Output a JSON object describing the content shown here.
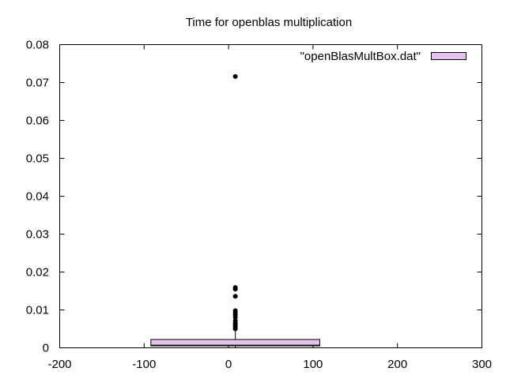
{
  "chart_data": {
    "type": "box",
    "title": "Time for openblas multiplication",
    "xlabel": "",
    "ylabel": "",
    "xlim": [
      -200,
      300
    ],
    "ylim": [
      0,
      0.08
    ],
    "x_ticks": [
      -200,
      -100,
      0,
      100,
      200,
      300
    ],
    "x_tick_labels": [
      "-200",
      "-100",
      "0",
      "100",
      "200",
      "300"
    ],
    "y_ticks": [
      0,
      0.01,
      0.02,
      0.03,
      0.04,
      0.05,
      0.06,
      0.07,
      0.08
    ],
    "y_tick_labels": [
      "0",
      "0.01",
      "0.02",
      "0.03",
      "0.04",
      "0.05",
      "0.06",
      "0.07",
      "0.08"
    ],
    "grid": false,
    "legend": {
      "position": "top-right",
      "entries": [
        "\"openBlasMultBox.dat\""
      ]
    },
    "series": [
      {
        "name": "\"openBlasMultBox.dat\"",
        "color": "#e6c3ee",
        "box": {
          "x": 8,
          "x_left": -92,
          "x_right": 108,
          "min": 0.0001,
          "q1": 0.0005,
          "median": 0.0007,
          "q3": 0.0022,
          "whisker_high": 0.0045
        },
        "outliers": [
          {
            "x": 8,
            "y": 0.0716
          },
          {
            "x": 8,
            "y": 0.0159
          },
          {
            "x": 8,
            "y": 0.0155
          },
          {
            "x": 8,
            "y": 0.0136
          },
          {
            "x": 8,
            "y": 0.0098
          },
          {
            "x": 8,
            "y": 0.0092
          },
          {
            "x": 8,
            "y": 0.0087
          },
          {
            "x": 8,
            "y": 0.0081
          },
          {
            "x": 8,
            "y": 0.0072
          },
          {
            "x": 8,
            "y": 0.0066
          },
          {
            "x": 8,
            "y": 0.0061
          },
          {
            "x": 8,
            "y": 0.0057
          },
          {
            "x": 8,
            "y": 0.0053
          },
          {
            "x": 8,
            "y": 0.005
          }
        ]
      }
    ]
  }
}
